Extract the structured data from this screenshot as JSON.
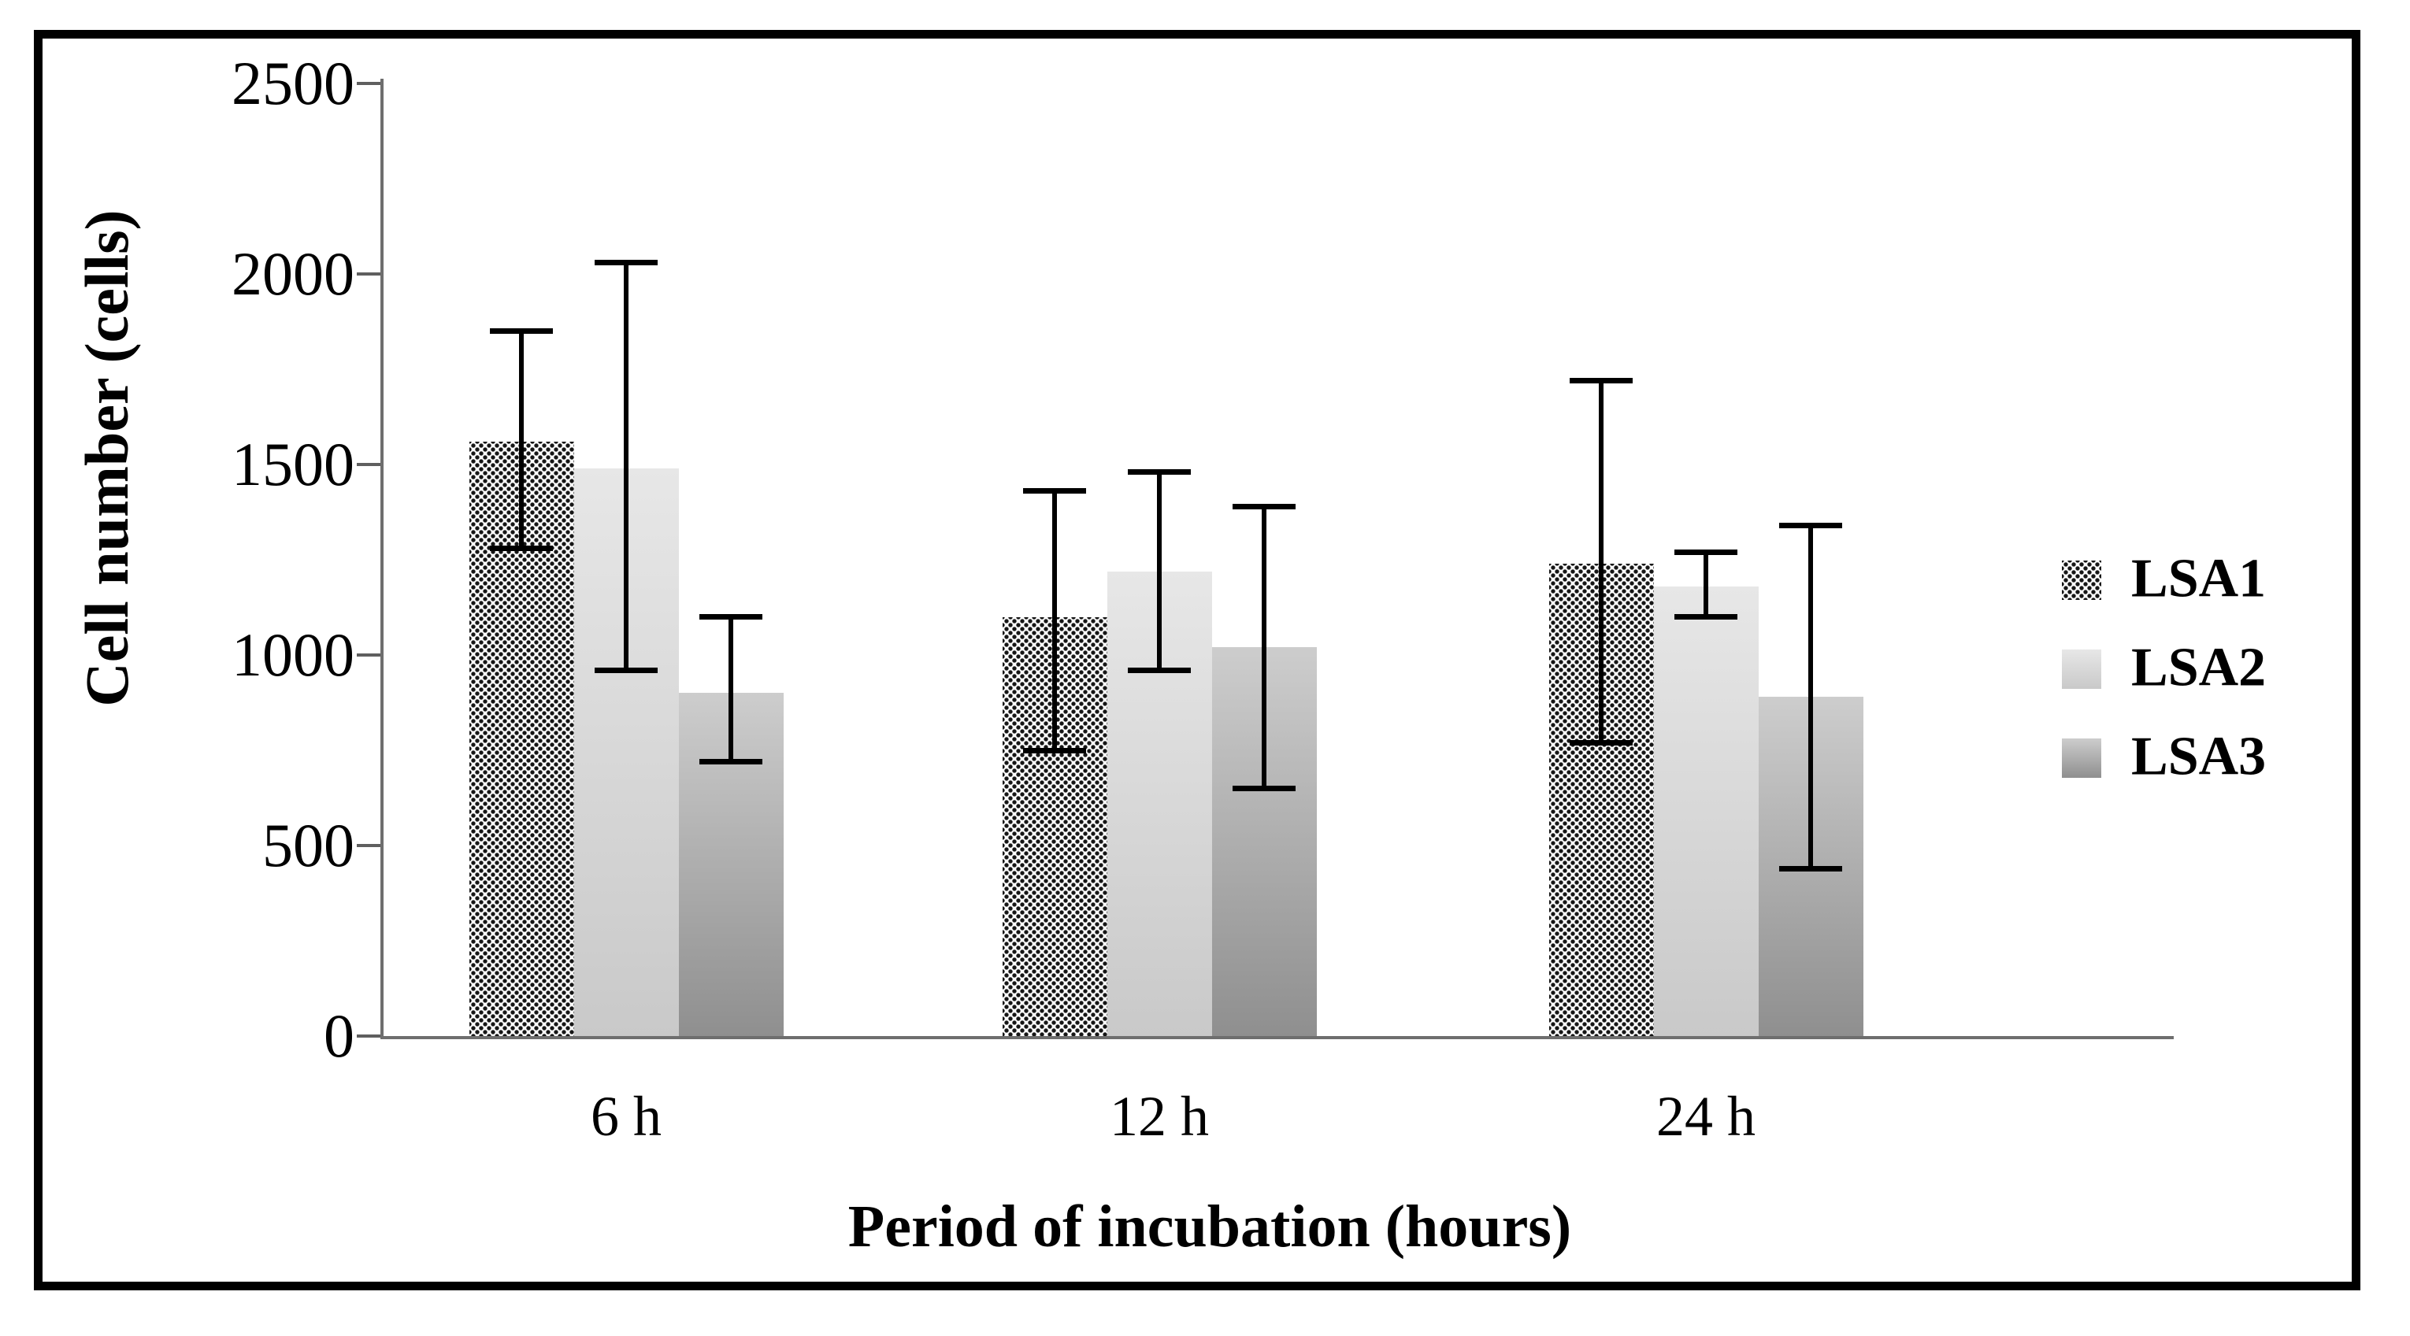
{
  "chart_data": {
    "type": "bar",
    "categories": [
      "6 h",
      "12 h",
      "24 h"
    ],
    "series": [
      {
        "name": "LSA1",
        "pattern": "black-dots-on-white",
        "values": [
          1560,
          1100,
          1240
        ],
        "error_low": [
          1280,
          750,
          770
        ],
        "error_high": [
          1850,
          1430,
          1720
        ]
      },
      {
        "name": "LSA2",
        "pattern": "light-gray-gradient",
        "values": [
          1490,
          1220,
          1180
        ],
        "error_low": [
          960,
          960,
          1100
        ],
        "error_high": [
          2030,
          1480,
          1270
        ]
      },
      {
        "name": "LSA3",
        "pattern": "medium-gray-gradient",
        "values": [
          900,
          1020,
          890
        ],
        "error_low": [
          720,
          650,
          440
        ],
        "error_high": [
          1100,
          1390,
          1340
        ]
      }
    ],
    "xlabel": "Period of incubation (hours)",
    "ylabel": "Cell number (cells)",
    "ylim": [
      0,
      2500
    ],
    "yticks": [
      "0",
      "500",
      "1000",
      "1500",
      "2000",
      "2500"
    ],
    "legend": [
      "LSA1",
      "LSA2",
      "LSA3"
    ],
    "legend_position": "right-middle",
    "grid": false,
    "error_bars": true
  },
  "colors": {
    "background": "#ffffff",
    "frame_border": "#000000",
    "axis_line": "#6e6e6e",
    "text": "#000000",
    "lsa1_dot": "#151515",
    "lsa2_top": "#e7e7e7",
    "lsa2_bottom": "#c9c9c9",
    "lsa3_top": "#cdcdcd",
    "lsa3_bottom": "#8f8f8f",
    "error_bar": "#000000"
  }
}
